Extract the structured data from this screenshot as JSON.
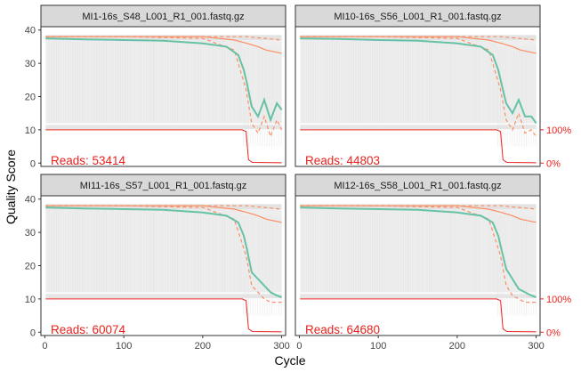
{
  "figure": {
    "ylabel": "Quality Score",
    "xlabel": "Cycle",
    "secondary_axis_labels": [
      "100%",
      "0%"
    ]
  },
  "colors": {
    "strip_bg": "#d9d9d9",
    "heat": "#e0e0e0",
    "mean_line": "#66c2a5",
    "quartile_line": "#fc8d62",
    "reads_line": "#e8211c",
    "axis_text": "#444444",
    "secondary_text": "#e8211c"
  },
  "chart_data": [
    {
      "type": "line",
      "title": "MI1-16s_S48_L001_R1_001.fastq.gz",
      "reads_label": "Reads:  53414",
      "xlim": [
        -5,
        305
      ],
      "ylim": [
        -1,
        41
      ],
      "xticks": [
        "0",
        "100",
        "200",
        "300"
      ],
      "yticks": [
        "0",
        "10",
        "20",
        "30",
        "40"
      ],
      "series": [
        {
          "name": "mean",
          "x": [
            1,
            50,
            100,
            150,
            200,
            230,
            245,
            252,
            256,
            262,
            270,
            278,
            286,
            294,
            300
          ],
          "y": [
            37.5,
            37.2,
            37.0,
            36.8,
            36.0,
            35.0,
            32.5,
            28.0,
            24.0,
            17.0,
            14.0,
            19.0,
            13.0,
            18.0,
            16.0
          ]
        },
        {
          "name": "q25",
          "x": [
            1,
            100,
            200,
            240,
            255,
            262,
            270,
            278,
            286,
            294,
            300
          ],
          "y": [
            38.0,
            38.0,
            37.5,
            34.0,
            22.0,
            12.0,
            9.0,
            14.0,
            8.0,
            13.0,
            10.0
          ]
        },
        {
          "name": "q50",
          "x": [
            1,
            100,
            200,
            240,
            256,
            270,
            280,
            300
          ],
          "y": [
            38.0,
            38.0,
            38.0,
            37.0,
            36.0,
            35.0,
            34.0,
            33.0
          ]
        },
        {
          "name": "q75",
          "x": [
            1,
            100,
            200,
            240,
            256,
            300
          ],
          "y": [
            38.0,
            38.0,
            38.0,
            38.0,
            38.0,
            37.0
          ]
        },
        {
          "name": "reads",
          "x": [
            1,
            250,
            255,
            258,
            263,
            300
          ],
          "y": [
            10.0,
            10.0,
            9.5,
            1.0,
            0.2,
            0.1
          ]
        }
      ]
    },
    {
      "type": "line",
      "title": "MI10-16s_S56_L001_R1_001.fastq.gz",
      "reads_label": "Reads:  44803",
      "xlim": [
        -5,
        305
      ],
      "ylim": [
        -1,
        41
      ],
      "xticks": [
        "0",
        "100",
        "200",
        "300"
      ],
      "yticks": [
        "0",
        "10",
        "20",
        "30",
        "40"
      ],
      "series": [
        {
          "name": "mean",
          "x": [
            1,
            50,
            100,
            150,
            200,
            230,
            245,
            252,
            256,
            262,
            270,
            278,
            286,
            294,
            300
          ],
          "y": [
            37.5,
            37.3,
            37.0,
            36.8,
            36.0,
            35.0,
            32.5,
            28.0,
            24.0,
            18.0,
            15.0,
            19.0,
            14.0,
            14.0,
            12.0
          ]
        },
        {
          "name": "q25",
          "x": [
            1,
            100,
            200,
            240,
            255,
            262,
            270,
            278,
            286,
            294,
            300
          ],
          "y": [
            38.0,
            38.0,
            37.5,
            34.0,
            22.0,
            13.0,
            10.0,
            15.0,
            9.0,
            10.0,
            8.0
          ]
        },
        {
          "name": "q50",
          "x": [
            1,
            100,
            200,
            240,
            256,
            270,
            280,
            300
          ],
          "y": [
            38.0,
            38.0,
            38.0,
            37.0,
            36.0,
            35.0,
            34.0,
            33.0
          ]
        },
        {
          "name": "q75",
          "x": [
            1,
            100,
            200,
            240,
            256,
            300
          ],
          "y": [
            38.0,
            38.0,
            38.0,
            38.0,
            38.0,
            37.0
          ]
        },
        {
          "name": "reads",
          "x": [
            1,
            250,
            255,
            258,
            263,
            300
          ],
          "y": [
            10.0,
            10.0,
            9.5,
            1.0,
            0.2,
            0.1
          ]
        }
      ]
    },
    {
      "type": "line",
      "title": "MI11-16s_S57_L001_R1_001.fastq.gz",
      "reads_label": "Reads:  60074",
      "xlim": [
        -5,
        305
      ],
      "ylim": [
        -1,
        41
      ],
      "xticks": [
        "0",
        "100",
        "200",
        "300"
      ],
      "yticks": [
        "0",
        "10",
        "20",
        "30",
        "40"
      ],
      "series": [
        {
          "name": "mean",
          "x": [
            1,
            50,
            100,
            150,
            200,
            230,
            245,
            252,
            256,
            262,
            270,
            278,
            286,
            294,
            300
          ],
          "y": [
            37.5,
            37.2,
            37.0,
            36.8,
            36.0,
            35.0,
            33.0,
            29.0,
            25.0,
            18.0,
            16.0,
            14.0,
            12.0,
            11.0,
            10.5
          ]
        },
        {
          "name": "q25",
          "x": [
            1,
            100,
            200,
            240,
            255,
            262,
            270,
            278,
            286,
            294,
            300
          ],
          "y": [
            38.0,
            38.0,
            37.5,
            34.0,
            23.0,
            14.0,
            12.0,
            10.0,
            9.0,
            9.0,
            9.0
          ]
        },
        {
          "name": "q50",
          "x": [
            1,
            100,
            200,
            240,
            256,
            270,
            280,
            300
          ],
          "y": [
            38.0,
            38.0,
            38.0,
            37.0,
            36.0,
            35.0,
            34.0,
            33.0
          ]
        },
        {
          "name": "q75",
          "x": [
            1,
            100,
            200,
            240,
            256,
            300
          ],
          "y": [
            38.0,
            38.0,
            38.0,
            38.0,
            38.0,
            37.0
          ]
        },
        {
          "name": "reads",
          "x": [
            1,
            250,
            255,
            258,
            263,
            300
          ],
          "y": [
            10.0,
            10.0,
            9.5,
            1.0,
            0.2,
            0.1
          ]
        }
      ]
    },
    {
      "type": "line",
      "title": "MI12-16s_S58_L001_R1_001.fastq.gz",
      "reads_label": "Reads:  64680",
      "xlim": [
        -5,
        305
      ],
      "ylim": [
        -1,
        41
      ],
      "xticks": [
        "0",
        "100",
        "200",
        "300"
      ],
      "yticks": [
        "0",
        "10",
        "20",
        "30",
        "40"
      ],
      "series": [
        {
          "name": "mean",
          "x": [
            1,
            50,
            100,
            150,
            200,
            230,
            245,
            252,
            256,
            262,
            270,
            278,
            286,
            294,
            300
          ],
          "y": [
            37.5,
            37.2,
            37.0,
            36.8,
            36.0,
            35.0,
            33.0,
            29.0,
            25.0,
            19.0,
            16.0,
            13.0,
            12.0,
            11.0,
            10.5
          ]
        },
        {
          "name": "q25",
          "x": [
            1,
            100,
            200,
            240,
            255,
            262,
            270,
            278,
            286,
            294,
            300
          ],
          "y": [
            38.0,
            38.0,
            37.5,
            34.0,
            23.0,
            14.0,
            11.0,
            10.0,
            9.0,
            9.0,
            9.0
          ]
        },
        {
          "name": "q50",
          "x": [
            1,
            100,
            200,
            240,
            256,
            270,
            280,
            300
          ],
          "y": [
            38.0,
            38.0,
            38.0,
            37.0,
            36.0,
            35.0,
            34.0,
            33.0
          ]
        },
        {
          "name": "q75",
          "x": [
            1,
            100,
            200,
            240,
            256,
            300
          ],
          "y": [
            38.0,
            38.0,
            38.0,
            38.0,
            38.0,
            37.0
          ]
        },
        {
          "name": "reads",
          "x": [
            1,
            250,
            255,
            258,
            263,
            300
          ],
          "y": [
            10.0,
            10.0,
            9.5,
            1.0,
            0.2,
            0.1
          ]
        }
      ]
    }
  ]
}
